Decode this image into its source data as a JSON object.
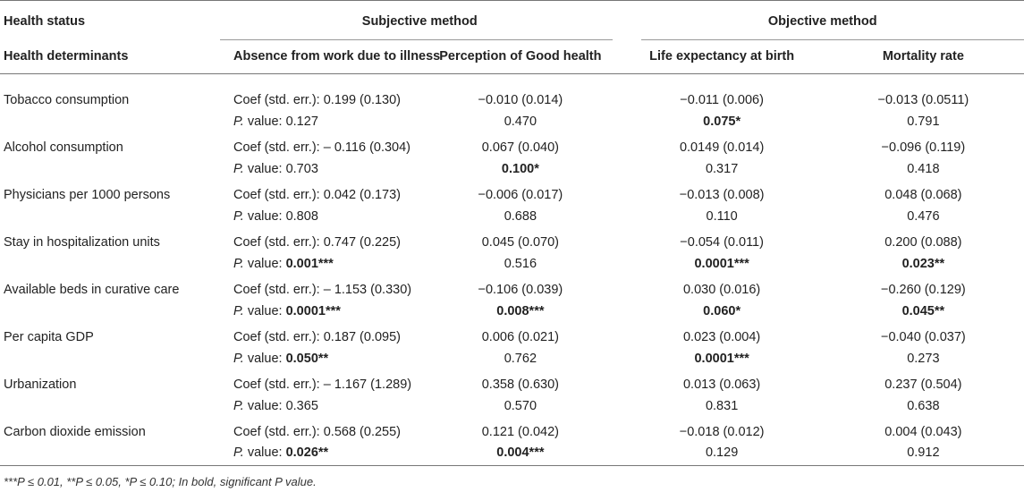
{
  "header": {
    "row1_label": "Health status",
    "group_subjective": "Subjective method",
    "group_objective": "Objective method",
    "row2_label": "Health determinants",
    "columns": [
      "Absence from work due to illness",
      "Perception of Good health",
      "Life expectancy at birth",
      "Mortality rate"
    ]
  },
  "labels": {
    "coef_prefix": "Coef (std. err.): ",
    "p_prefix_italic": "P.",
    "p_prefix_rest": " value: "
  },
  "rows": [
    {
      "name": "Tobacco consumption",
      "coef": [
        "0.199 (0.130)",
        "−0.010 (0.014)",
        "−0.011 (0.006)",
        "−0.013 (0.0511)"
      ],
      "p": [
        "0.127",
        "0.470",
        "0.075*",
        "0.791"
      ]
    },
    {
      "name": "Alcohol consumption",
      "coef": [
        "– 0.116 (0.304)",
        "0.067 (0.040)",
        "0.0149 (0.014)",
        "−0.096 (0.119)"
      ],
      "p": [
        "0.703",
        "0.100*",
        "0.317",
        "0.418"
      ]
    },
    {
      "name": "Physicians per 1000 persons",
      "coef": [
        "0.042 (0.173)",
        "−0.006 (0.017)",
        "−0.013 (0.008)",
        "0.048 (0.068)"
      ],
      "p": [
        "0.808",
        "0.688",
        "0.110",
        "0.476"
      ]
    },
    {
      "name": "Stay in hospitalization units",
      "coef": [
        "0.747 (0.225)",
        "0.045 (0.070)",
        "−0.054 (0.011)",
        "0.200 (0.088)"
      ],
      "p": [
        "0.001***",
        "0.516",
        "0.0001***",
        "0.023**"
      ]
    },
    {
      "name": "Available beds in curative care",
      "coef": [
        "– 1.153 (0.330)",
        "−0.106 (0.039)",
        "0.030 (0.016)",
        "−0.260 (0.129)"
      ],
      "p": [
        "0.0001***",
        "0.008***",
        "0.060*",
        "0.045**"
      ]
    },
    {
      "name": "Per capita GDP",
      "coef": [
        "0.187 (0.095)",
        "0.006 (0.021)",
        "0.023 (0.004)",
        "−0.040 (0.037)"
      ],
      "p": [
        "0.050**",
        "0.762",
        "0.0001***",
        "0.273"
      ]
    },
    {
      "name": "Urbanization",
      "coef": [
        "– 1.167 (1.289)",
        "0.358 (0.630)",
        "0.013 (0.063)",
        "0.237 (0.504)"
      ],
      "p": [
        "0.365",
        "0.570",
        "0.831",
        "0.638"
      ]
    },
    {
      "name": "Carbon dioxide emission",
      "coef": [
        "0.568 (0.255)",
        "0.121 (0.042)",
        "−0.018 (0.012)",
        "0.004 (0.043)"
      ],
      "p": [
        "0.026**",
        "0.004***",
        "0.129",
        "0.912"
      ]
    }
  ],
  "footnote": "***P ≤ 0.01, **P ≤ 0.05, *P ≤ 0.10; In bold, significant P value."
}
